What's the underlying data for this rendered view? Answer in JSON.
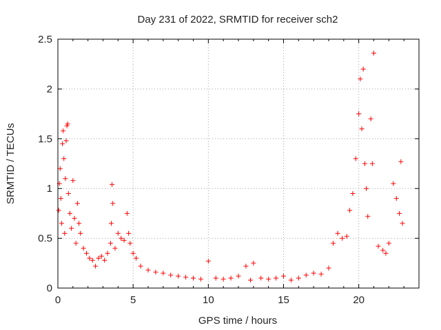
{
  "chart_data": {
    "type": "scatter",
    "title": "Day 231 of 2022, SRMTID for receiver sch2",
    "xlabel": "GPS time / hours",
    "ylabel": "SRMTID / TECUs",
    "xlim": [
      0,
      24
    ],
    "ylim": [
      0,
      2.5
    ],
    "grid": true,
    "marker": "+",
    "color": "#ff0000",
    "xticks": [
      0,
      5,
      10,
      15,
      20
    ],
    "yticks": [
      0,
      0.5,
      1,
      1.5,
      2,
      2.5
    ],
    "xtick_labels": [
      "0",
      "5",
      "10",
      "15",
      "20"
    ],
    "ytick_labels": [
      "0",
      "0.5",
      "1",
      "1.5",
      "2",
      "2.5"
    ],
    "series": [
      {
        "name": "SRMTID",
        "points": [
          [
            0.05,
            0.78
          ],
          [
            0.1,
            1.05
          ],
          [
            0.15,
            1.2
          ],
          [
            0.2,
            0.9
          ],
          [
            0.25,
            0.65
          ],
          [
            0.3,
            1.45
          ],
          [
            0.35,
            1.58
          ],
          [
            0.4,
            1.3
          ],
          [
            0.45,
            0.55
          ],
          [
            0.5,
            1.1
          ],
          [
            0.55,
            1.48
          ],
          [
            0.6,
            1.63
          ],
          [
            0.65,
            1.65
          ],
          [
            0.7,
            0.95
          ],
          [
            0.8,
            0.75
          ],
          [
            0.9,
            0.6
          ],
          [
            1.0,
            1.08
          ],
          [
            1.1,
            0.7
          ],
          [
            1.2,
            0.45
          ],
          [
            1.3,
            0.85
          ],
          [
            1.4,
            0.65
          ],
          [
            1.5,
            0.55
          ],
          [
            1.7,
            0.4
          ],
          [
            1.9,
            0.35
          ],
          [
            2.1,
            0.3
          ],
          [
            2.3,
            0.28
          ],
          [
            2.5,
            0.22
          ],
          [
            2.7,
            0.3
          ],
          [
            2.9,
            0.32
          ],
          [
            3.1,
            0.28
          ],
          [
            3.3,
            0.35
          ],
          [
            3.5,
            0.45
          ],
          [
            3.55,
            0.65
          ],
          [
            3.6,
            1.04
          ],
          [
            3.65,
            0.85
          ],
          [
            3.8,
            0.4
          ],
          [
            4.0,
            0.55
          ],
          [
            4.2,
            0.5
          ],
          [
            4.4,
            0.48
          ],
          [
            4.6,
            0.75
          ],
          [
            4.7,
            0.55
          ],
          [
            4.8,
            0.45
          ],
          [
            5.0,
            0.35
          ],
          [
            5.2,
            0.3
          ],
          [
            5.5,
            0.22
          ],
          [
            6.0,
            0.18
          ],
          [
            6.5,
            0.16
          ],
          [
            7.0,
            0.15
          ],
          [
            7.5,
            0.13
          ],
          [
            8.0,
            0.12
          ],
          [
            8.5,
            0.11
          ],
          [
            9.0,
            0.1
          ],
          [
            9.5,
            0.09
          ],
          [
            10.0,
            0.27
          ],
          [
            10.5,
            0.1
          ],
          [
            11.0,
            0.09
          ],
          [
            11.5,
            0.1
          ],
          [
            12.0,
            0.12
          ],
          [
            12.5,
            0.22
          ],
          [
            12.8,
            0.08
          ],
          [
            13.0,
            0.25
          ],
          [
            13.5,
            0.1
          ],
          [
            14.0,
            0.09
          ],
          [
            14.5,
            0.1
          ],
          [
            15.0,
            0.12
          ],
          [
            15.5,
            0.08
          ],
          [
            16.0,
            0.1
          ],
          [
            16.5,
            0.13
          ],
          [
            17.0,
            0.15
          ],
          [
            17.5,
            0.14
          ],
          [
            18.0,
            0.2
          ],
          [
            18.3,
            0.45
          ],
          [
            18.6,
            0.55
          ],
          [
            18.9,
            0.5
          ],
          [
            19.2,
            0.52
          ],
          [
            19.4,
            0.78
          ],
          [
            19.6,
            0.95
          ],
          [
            19.8,
            1.3
          ],
          [
            20.0,
            1.75
          ],
          [
            20.1,
            2.1
          ],
          [
            20.2,
            1.6
          ],
          [
            20.3,
            2.2
          ],
          [
            20.4,
            1.25
          ],
          [
            20.5,
            1.0
          ],
          [
            20.6,
            0.72
          ],
          [
            20.8,
            1.7
          ],
          [
            20.9,
            1.25
          ],
          [
            21.0,
            2.36
          ],
          [
            21.3,
            0.42
          ],
          [
            21.6,
            0.38
          ],
          [
            21.8,
            0.35
          ],
          [
            22.0,
            0.45
          ],
          [
            22.3,
            1.05
          ],
          [
            22.5,
            0.9
          ],
          [
            22.7,
            0.75
          ],
          [
            22.8,
            1.27
          ],
          [
            22.9,
            0.65
          ]
        ]
      }
    ]
  }
}
